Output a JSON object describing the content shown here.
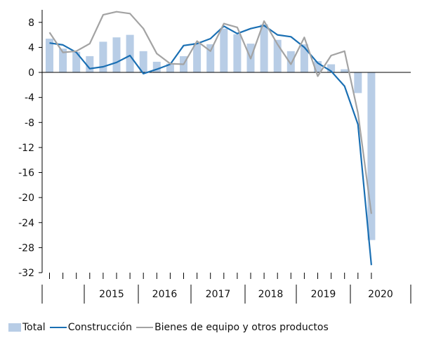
{
  "chart_data": {
    "type": "bar",
    "title": "",
    "xlabel": "",
    "ylabel": "",
    "ylim": [
      -32,
      10
    ],
    "yticks": [
      8,
      4,
      0,
      -4,
      -8,
      -12,
      -16,
      -20,
      -24,
      -28,
      -32
    ],
    "year_labels": [
      "2015",
      "2016",
      "2017",
      "2018",
      "2019",
      "2020"
    ],
    "series": [
      {
        "name": "Total",
        "kind": "bar",
        "color": "#b8cde6",
        "values": [
          5.4,
          3.8,
          3.3,
          2.6,
          4.9,
          5.6,
          6.0,
          3.4,
          1.7,
          1.4,
          2.6,
          4.7,
          4.5,
          7.0,
          6.1,
          4.6,
          7.7,
          5.2,
          3.4,
          4.5,
          1.8,
          1.3,
          0.5,
          -3.3,
          -26.8
        ]
      },
      {
        "name": "Construcción",
        "kind": "line",
        "color": "#1a6fb3",
        "values": [
          4.7,
          4.4,
          3.2,
          0.6,
          0.9,
          1.6,
          2.7,
          -0.2,
          0.5,
          1.3,
          4.3,
          4.6,
          5.4,
          7.4,
          6.2,
          7.0,
          7.5,
          6.0,
          5.7,
          4.0,
          1.5,
          0.2,
          -2.2,
          -8.3,
          -30.8
        ]
      },
      {
        "name": "Bienes de equipo y otros productos",
        "kind": "line",
        "color": "#a3a3a3",
        "values": [
          6.4,
          3.2,
          3.4,
          4.6,
          9.2,
          9.7,
          9.4,
          7.0,
          3.0,
          1.4,
          1.3,
          5.0,
          3.4,
          7.8,
          7.2,
          2.2,
          8.2,
          4.5,
          1.3,
          5.6,
          -0.6,
          2.7,
          3.4,
          -6.5,
          -22.6
        ]
      }
    ],
    "legend": {
      "position": "bottom"
    },
    "grid": false
  }
}
